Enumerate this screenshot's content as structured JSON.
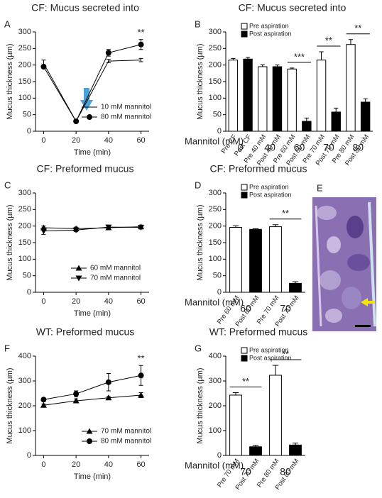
{
  "chart_data": [
    {
      "type": "line",
      "panel": "A",
      "title": "CF: Mucus secreted into",
      "xlabel": "Time (min)",
      "ylabel": "Mucus thickness (µm)",
      "x": [
        0,
        20,
        40,
        60
      ],
      "xlim": [
        -5,
        65
      ],
      "xticks": [
        0,
        20,
        40,
        60
      ],
      "ylim": [
        0,
        300
      ],
      "yticks": [
        0,
        50,
        100,
        150,
        200,
        250,
        300
      ],
      "legend": "lower right",
      "series": [
        {
          "name": "10 mM mannitol",
          "color": "#000000",
          "marker": "none",
          "values": [
            205,
            30,
            212,
            215
          ],
          "errors": [
            10,
            0,
            5,
            5
          ]
        },
        {
          "name": "80 mM mannitol",
          "color": "#000000",
          "marker": "circle",
          "values": [
            195,
            30,
            237,
            262
          ],
          "errors": [
            0,
            0,
            10,
            15
          ]
        }
      ],
      "annotations": [
        null,
        null,
        null,
        "**"
      ]
    },
    {
      "type": "bar",
      "panel": "B",
      "title": "CF: Mucus secreted into",
      "ylabel": "Mucus thickness (µm)",
      "categories": [
        "Pre CF",
        "Post CF",
        "Pre 40 mM",
        "Post 40 mM",
        "Pre 60 mM",
        "Post 60 mM",
        "Pre 70 mM",
        "Post 70 mM",
        "Pre 80 mM",
        "Post 80 mM"
      ],
      "values": [
        215,
        218,
        195,
        195,
        188,
        30,
        215,
        58,
        262,
        88
      ],
      "errors": [
        5,
        5,
        6,
        5,
        3,
        10,
        25,
        12,
        15,
        10
      ],
      "colors": [
        "#ffffff",
        "#000000",
        "#ffffff",
        "#000000",
        "#ffffff",
        "#000000",
        "#ffffff",
        "#000000",
        "#ffffff",
        "#000000"
      ],
      "legend_entries": [
        {
          "name": "Pre aspiration",
          "color": "#ffffff"
        },
        {
          "name": "Post aspiration",
          "color": "#000000"
        }
      ],
      "ylim": [
        0,
        300
      ],
      "yticks": [
        0,
        50,
        100,
        150,
        200,
        250,
        300
      ],
      "group_label": "Mannitol (mM)",
      "groups": [
        "0",
        "40",
        "60",
        "70",
        "80"
      ],
      "significance": [
        null,
        null,
        "***",
        "**",
        "**"
      ]
    },
    {
      "type": "line",
      "panel": "C",
      "title": "CF: Preformed mucus",
      "xlabel": "Time (min)",
      "ylabel": "Mucus thickness (µm)",
      "x": [
        0,
        20,
        40,
        60
      ],
      "xlim": [
        -5,
        65
      ],
      "xticks": [
        0,
        20,
        40,
        60
      ],
      "ylim": [
        0,
        300
      ],
      "yticks": [
        0,
        50,
        100,
        150,
        200,
        250,
        300
      ],
      "legend": "lower center",
      "series": [
        {
          "name": "60 mM mannitol",
          "color": "#000000",
          "marker": "triangle-up",
          "values": [
            195,
            192,
            195,
            198
          ],
          "errors": [
            5,
            5,
            5,
            5
          ]
        },
        {
          "name": "70 mM mannitol",
          "color": "#000000",
          "marker": "triangle-down",
          "values": [
            185,
            188,
            197,
            196
          ],
          "errors": [
            10,
            5,
            5,
            5
          ]
        }
      ],
      "annotations": [
        null,
        null,
        null,
        null
      ]
    },
    {
      "type": "bar",
      "panel": "D",
      "title": "CF: Preformed mucus",
      "ylabel": "Mucus thickness (µm)",
      "categories": [
        "Pre 60 mM",
        "Post 60 mM",
        "Pre 70 mM",
        "Post 70 mM"
      ],
      "values": [
        196,
        190,
        198,
        27
      ],
      "errors": [
        5,
        2,
        6,
        5
      ],
      "colors": [
        "#ffffff",
        "#000000",
        "#ffffff",
        "#000000"
      ],
      "legend_entries": [
        {
          "name": "Pre aspiration",
          "color": "#ffffff"
        },
        {
          "name": "Post aspiration",
          "color": "#000000"
        }
      ],
      "ylim": [
        0,
        300
      ],
      "yticks": [
        0,
        50,
        100,
        150,
        200,
        250,
        300
      ],
      "group_label": "Mannitol (mM)",
      "groups": [
        "60",
        "70"
      ],
      "significance": [
        null,
        "**"
      ]
    },
    {
      "type": "line",
      "panel": "F",
      "title": "WT: Preformed mucus",
      "xlabel": "Time (min)",
      "ylabel": "Mucus thickness (µm)",
      "x": [
        0,
        20,
        40,
        60
      ],
      "xlim": [
        -5,
        65
      ],
      "xticks": [
        0,
        20,
        40,
        60
      ],
      "ylim": [
        0,
        400
      ],
      "yticks": [
        0,
        100,
        200,
        300,
        400
      ],
      "legend": "lower right",
      "series": [
        {
          "name": "70 mM mannitol",
          "color": "#000000",
          "marker": "triangle-up",
          "values": [
            202,
            220,
            232,
            243
          ],
          "errors": [
            5,
            8,
            5,
            10
          ]
        },
        {
          "name": "80 mM mannitol",
          "color": "#000000",
          "marker": "circle",
          "values": [
            225,
            248,
            295,
            322
          ],
          "errors": [
            5,
            12,
            35,
            40
          ]
        }
      ],
      "annotations": [
        null,
        null,
        null,
        "**"
      ]
    },
    {
      "type": "bar",
      "panel": "G",
      "title": "WT: Preformed mucus",
      "ylabel": "Mucus thickness (µm)",
      "categories": [
        "Pre 70 mM",
        "Post 70 mM",
        "Pre 80 mM",
        "Post 80 mM"
      ],
      "values": [
        243,
        35,
        323,
        42
      ],
      "errors": [
        10,
        6,
        40,
        8
      ],
      "colors": [
        "#ffffff",
        "#000000",
        "#ffffff",
        "#000000"
      ],
      "legend_entries": [
        {
          "name": "Pre aspiration",
          "color": "#ffffff"
        },
        {
          "name": "Post aspiration",
          "color": "#000000"
        }
      ],
      "ylim": [
        0,
        400
      ],
      "yticks": [
        0,
        100,
        200,
        300,
        400
      ],
      "group_label": "Mannitol (mM)",
      "groups": [
        "70",
        "80"
      ],
      "significance": [
        "**",
        "**"
      ]
    }
  ],
  "image_panel": {
    "label": "E"
  }
}
